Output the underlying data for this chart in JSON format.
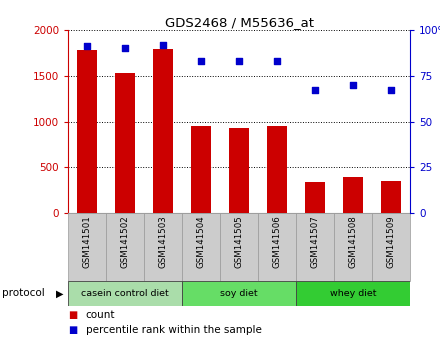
{
  "title": "GDS2468 / M55636_at",
  "samples": [
    "GSM141501",
    "GSM141502",
    "GSM141503",
    "GSM141504",
    "GSM141505",
    "GSM141506",
    "GSM141507",
    "GSM141508",
    "GSM141509"
  ],
  "counts": [
    1780,
    1530,
    1790,
    950,
    930,
    950,
    340,
    390,
    350
  ],
  "percentile_ranks": [
    91,
    90,
    92,
    83,
    83,
    83,
    67,
    70,
    67
  ],
  "ylim_left": [
    0,
    2000
  ],
  "ylim_right": [
    0,
    100
  ],
  "yticks_left": [
    0,
    500,
    1000,
    1500,
    2000
  ],
  "yticks_right": [
    0,
    25,
    50,
    75,
    100
  ],
  "bar_color": "#CC0000",
  "dot_color": "#0000CC",
  "groups": [
    {
      "label": "casein control diet",
      "start": 0,
      "end": 3
    },
    {
      "label": "soy diet",
      "start": 3,
      "end": 6
    },
    {
      "label": "whey diet",
      "start": 6,
      "end": 9
    }
  ],
  "group_colors": [
    "#AADDAA",
    "#66DD66",
    "#33CC33"
  ],
  "protocol_label": "protocol",
  "legend_count_label": "count",
  "legend_pct_label": "percentile rank within the sample",
  "tick_label_color_left": "#CC0000",
  "tick_label_color_right": "#0000CC",
  "background_color": "#FFFFFF",
  "xlabels_bg": "#CCCCCC",
  "xlabels_border": "#999999"
}
